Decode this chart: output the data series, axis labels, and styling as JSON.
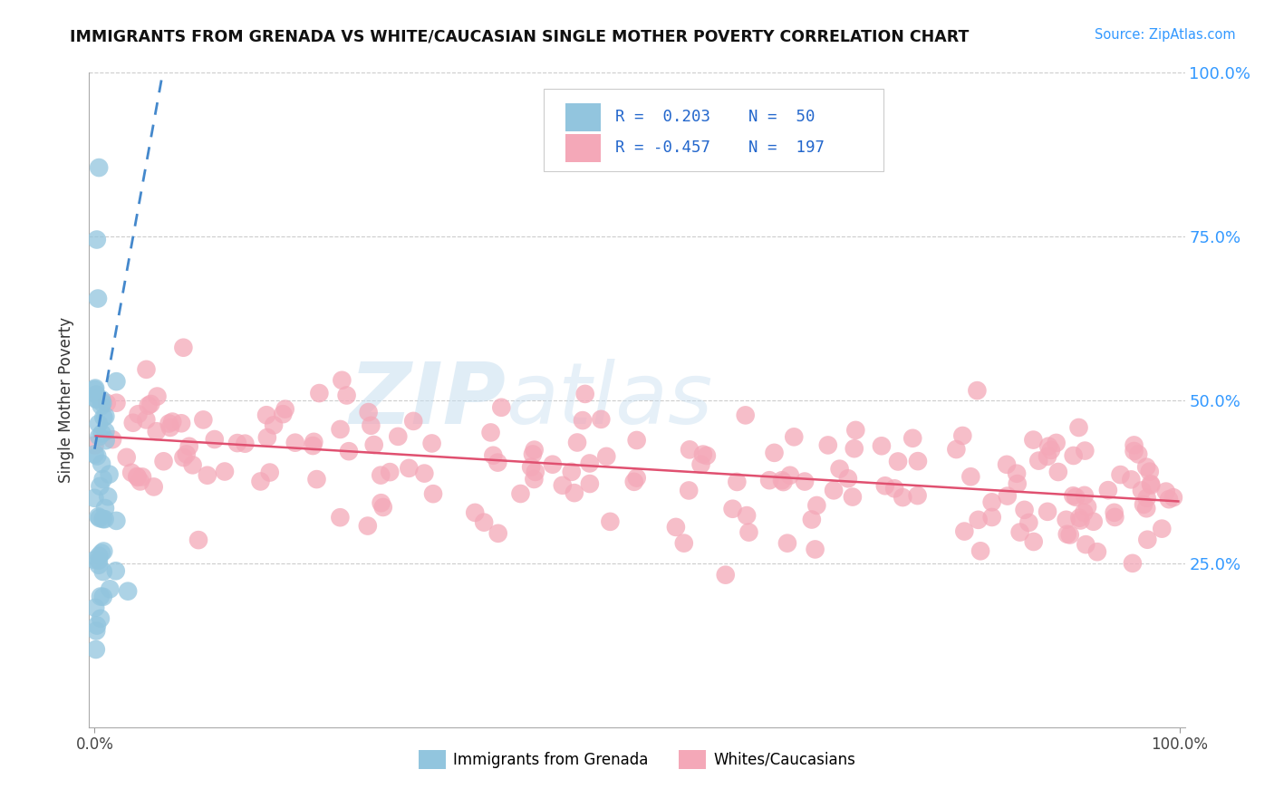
{
  "title": "IMMIGRANTS FROM GRENADA VS WHITE/CAUCASIAN SINGLE MOTHER POVERTY CORRELATION CHART",
  "source": "Source: ZipAtlas.com",
  "ylabel": "Single Mother Poverty",
  "legend_blue_label": "Immigrants from Grenada",
  "legend_pink_label": "Whites/Caucasians",
  "legend_blue_r": "0.203",
  "legend_blue_n": "50",
  "legend_pink_r": "-0.457",
  "legend_pink_n": "197",
  "blue_color": "#92C5DE",
  "pink_color": "#F4A8B8",
  "trend_blue_color": "#4488CC",
  "trend_pink_color": "#E05070",
  "watermark_zip": "ZIP",
  "watermark_atlas": "atlas",
  "background_color": "#FFFFFF",
  "xlim": [
    0.0,
    1.0
  ],
  "ylim": [
    0.0,
    1.0
  ],
  "yticks": [
    0.25,
    0.5,
    0.75,
    1.0
  ],
  "ytick_labels": [
    "25.0%",
    "50.0%",
    "75.0%",
    "100.0%"
  ],
  "xtick_left": "0.0%",
  "xtick_right": "100.0%"
}
